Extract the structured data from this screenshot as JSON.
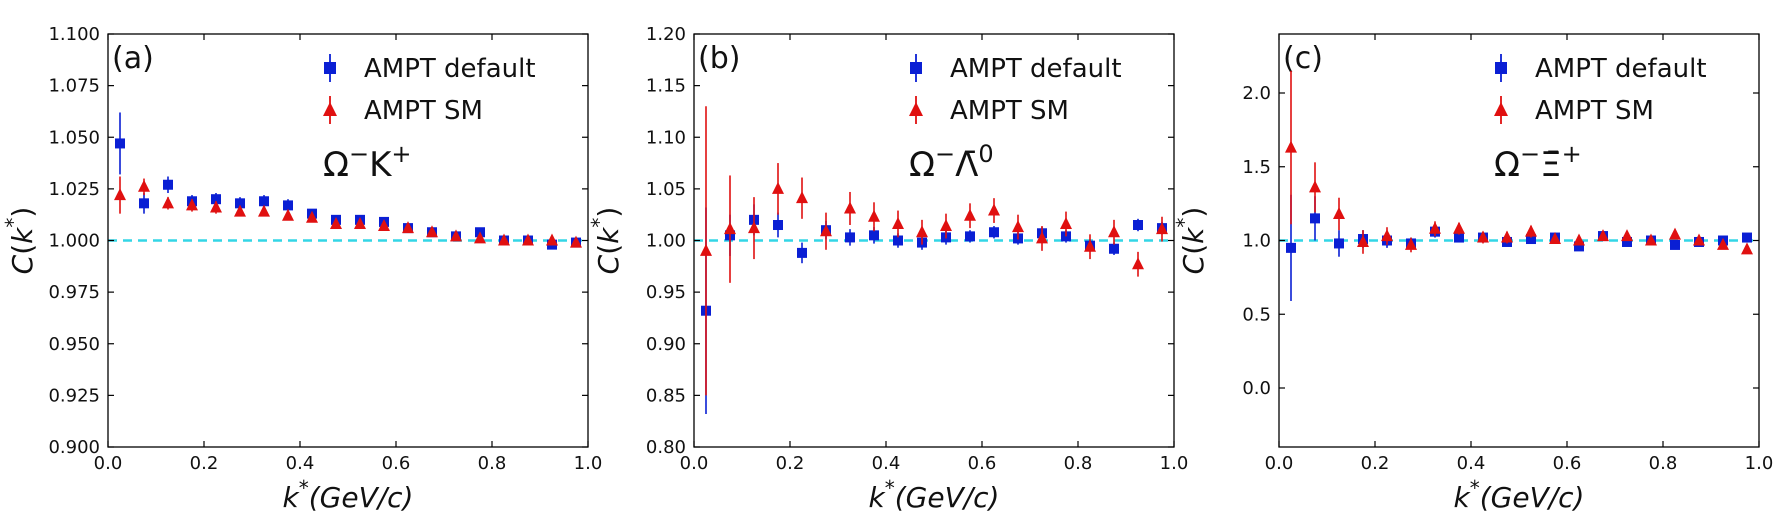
{
  "chart_data": [
    {
      "type": "scatter",
      "panel_label": "(a)",
      "annotation": "Ω⁻K⁺",
      "xlabel": "k*(GeV/c)",
      "ylabel": "C(k*)",
      "xlim": [
        0.0,
        1.0
      ],
      "ylim": [
        0.9,
        1.1
      ],
      "xticks": [
        "0.0",
        "0.2",
        "0.4",
        "0.6",
        "0.8",
        "1.0"
      ],
      "yticks": [
        "0.900",
        "0.925",
        "0.950",
        "0.975",
        "1.000",
        "1.025",
        "1.050",
        "1.075",
        "1.100"
      ],
      "reference_line": 1.0,
      "legend_position": "top-right",
      "x": [
        0.025,
        0.075,
        0.125,
        0.175,
        0.225,
        0.275,
        0.325,
        0.375,
        0.425,
        0.475,
        0.525,
        0.575,
        0.625,
        0.675,
        0.725,
        0.775,
        0.825,
        0.875,
        0.925,
        0.975
      ],
      "series": [
        {
          "name": "AMPT default",
          "marker": "square",
          "color": "#0a1fd4",
          "values": [
            1.047,
            1.018,
            1.027,
            1.019,
            1.02,
            1.018,
            1.019,
            1.017,
            1.013,
            1.01,
            1.01,
            1.009,
            1.006,
            1.004,
            1.002,
            1.004,
            1.0,
            1.0,
            0.998,
            0.999
          ],
          "errors": [
            0.015,
            0.005,
            0.004,
            0.003,
            0.003,
            0.003,
            0.003,
            0.003,
            0.002,
            0.002,
            0.002,
            0.002,
            0.002,
            0.002,
            0.002,
            0.002,
            0.002,
            0.002,
            0.002,
            0.002
          ]
        },
        {
          "name": "AMPT SM",
          "marker": "triangle",
          "color": "#e01010",
          "values": [
            1.022,
            1.026,
            1.018,
            1.017,
            1.016,
            1.014,
            1.014,
            1.012,
            1.011,
            1.008,
            1.008,
            1.007,
            1.006,
            1.004,
            1.002,
            1.001,
            1.0,
            1.0,
            1.0,
            0.999
          ],
          "errors": [
            0.009,
            0.004,
            0.003,
            0.003,
            0.003,
            0.002,
            0.002,
            0.002,
            0.002,
            0.002,
            0.002,
            0.002,
            0.002,
            0.002,
            0.002,
            0.002,
            0.002,
            0.002,
            0.002,
            0.002
          ]
        }
      ]
    },
    {
      "type": "scatter",
      "panel_label": "(b)",
      "annotation": "Ω⁻Λ̄⁰",
      "xlabel": "k*(GeV/c)",
      "ylabel": "C(k*)",
      "xlim": [
        0.0,
        1.0
      ],
      "ylim": [
        0.8,
        1.2
      ],
      "xticks": [
        "0.0",
        "0.2",
        "0.4",
        "0.6",
        "0.8",
        "1.0"
      ],
      "yticks": [
        "0.80",
        "0.85",
        "0.90",
        "0.95",
        "1.00",
        "1.05",
        "1.10",
        "1.15",
        "1.20"
      ],
      "reference_line": 1.0,
      "legend_position": "top-right",
      "x": [
        0.025,
        0.075,
        0.125,
        0.175,
        0.225,
        0.275,
        0.325,
        0.375,
        0.425,
        0.475,
        0.525,
        0.575,
        0.625,
        0.675,
        0.725,
        0.775,
        0.825,
        0.875,
        0.925,
        0.975
      ],
      "series": [
        {
          "name": "AMPT default",
          "marker": "square",
          "color": "#0a1fd4",
          "values": [
            0.932,
            1.005,
            1.02,
            1.015,
            0.988,
            1.01,
            1.003,
            1.005,
            1.0,
            0.998,
            1.003,
            1.004,
            1.008,
            1.002,
            1.007,
            1.004,
            0.995,
            0.992,
            1.015,
            1.012
          ],
          "errors": [
            0.1,
            0.02,
            0.015,
            0.012,
            0.01,
            0.009,
            0.008,
            0.008,
            0.007,
            0.007,
            0.007,
            0.006,
            0.006,
            0.006,
            0.006,
            0.006,
            0.006,
            0.006,
            0.006,
            0.006
          ]
        },
        {
          "name": "AMPT SM",
          "marker": "triangle",
          "color": "#e01010",
          "values": [
            0.99,
            1.011,
            1.012,
            1.05,
            1.041,
            1.009,
            1.031,
            1.023,
            1.016,
            1.008,
            1.014,
            1.024,
            1.029,
            1.013,
            1.002,
            1.016,
            0.994,
            1.008,
            0.977,
            1.011
          ],
          "errors": [
            0.14,
            0.052,
            0.03,
            0.025,
            0.02,
            0.018,
            0.016,
            0.014,
            0.013,
            0.012,
            0.012,
            0.012,
            0.012,
            0.012,
            0.012,
            0.012,
            0.012,
            0.012,
            0.012,
            0.012
          ]
        }
      ]
    },
    {
      "type": "scatter",
      "panel_label": "(c)",
      "annotation": "Ω⁻Ξ̄⁺",
      "xlabel": "k*(GeV/c)",
      "ylabel": "C(k*)",
      "xlim": [
        0.0,
        1.0
      ],
      "ylim": [
        -0.4,
        2.4
      ],
      "xticks": [
        "0.0",
        "0.2",
        "0.4",
        "0.6",
        "0.8",
        "1.0"
      ],
      "yticks": [
        "0.0",
        "0.5",
        "1.0",
        "1.5",
        "2.0"
      ],
      "reference_line": 1.0,
      "legend_position": "top-right",
      "x": [
        0.025,
        0.075,
        0.125,
        0.175,
        0.225,
        0.275,
        0.325,
        0.375,
        0.425,
        0.475,
        0.525,
        0.575,
        0.625,
        0.675,
        0.725,
        0.775,
        0.825,
        0.875,
        0.925,
        0.975
      ],
      "series": [
        {
          "name": "AMPT default",
          "marker": "square",
          "color": "#0a1fd4",
          "values": [
            0.95,
            1.15,
            0.98,
            1.01,
            1.0,
            0.98,
            1.06,
            1.02,
            1.02,
            0.99,
            1.01,
            1.02,
            0.96,
            1.03,
            0.99,
            1.0,
            0.97,
            0.99,
            1.0,
            1.02
          ],
          "errors": [
            0.36,
            0.15,
            0.09,
            0.06,
            0.05,
            0.04,
            0.04,
            0.03,
            0.03,
            0.03,
            0.03,
            0.03,
            0.03,
            0.03,
            0.02,
            0.02,
            0.02,
            0.02,
            0.02,
            0.02
          ]
        },
        {
          "name": "AMPT SM",
          "marker": "triangle",
          "color": "#e01010",
          "values": [
            1.63,
            1.36,
            1.18,
            0.99,
            1.03,
            0.97,
            1.08,
            1.08,
            1.02,
            1.02,
            1.06,
            1.01,
            1.0,
            1.03,
            1.03,
            1.0,
            1.04,
            1.0,
            0.97,
            0.94
          ],
          "errors": [
            0.52,
            0.17,
            0.11,
            0.08,
            0.06,
            0.05,
            0.05,
            0.04,
            0.04,
            0.04,
            0.04,
            0.03,
            0.03,
            0.03,
            0.03,
            0.03,
            0.03,
            0.03,
            0.03,
            0.03
          ]
        }
      ]
    }
  ]
}
